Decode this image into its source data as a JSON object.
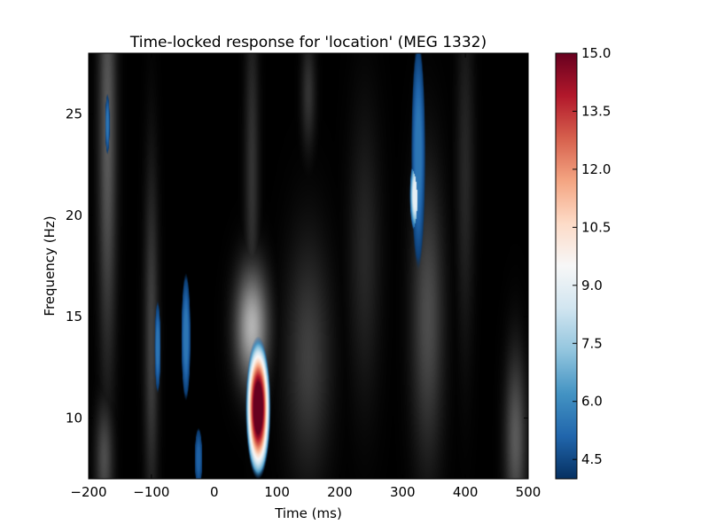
{
  "chart_data": {
    "type": "heatmap",
    "title": "Time-locked response for 'location' (MEG 1332)",
    "xlabel": "Time (ms)",
    "ylabel": "Frequency (Hz)",
    "xlim": [
      -200,
      500
    ],
    "ylim": [
      7,
      28
    ],
    "xticks": [
      -200,
      -100,
      0,
      100,
      200,
      300,
      400,
      500
    ],
    "xtick_labels": [
      "−200",
      "−100",
      "0",
      "100",
      "200",
      "300",
      "400",
      "500"
    ],
    "yticks": [
      10,
      15,
      20,
      25
    ],
    "ytick_labels": [
      "10",
      "15",
      "20",
      "25"
    ],
    "colorbar": {
      "range": [
        4,
        15
      ],
      "ticks": [
        4.5,
        6.0,
        7.5,
        9.0,
        10.5,
        12.0,
        13.5,
        15.0
      ],
      "tick_labels": [
        "4.5",
        "6.0",
        "7.5",
        "9.0",
        "10.5",
        "12.0",
        "13.5",
        "15.0"
      ],
      "colormap": "RdBu_r masked to gray"
    },
    "colormap_stops": [
      {
        "v": 0.0,
        "color": "#053061"
      },
      {
        "v": 0.1,
        "color": "#2166ac"
      },
      {
        "v": 0.2,
        "color": "#4393c3"
      },
      {
        "v": 0.3,
        "color": "#92c5de"
      },
      {
        "v": 0.4,
        "color": "#d1e5f0"
      },
      {
        "v": 0.5,
        "color": "#f7f7f7"
      },
      {
        "v": 0.6,
        "color": "#fddbc7"
      },
      {
        "v": 0.7,
        "color": "#f4a582"
      },
      {
        "v": 0.8,
        "color": "#d6604d"
      },
      {
        "v": 0.9,
        "color": "#b2182b"
      },
      {
        "v": 1.0,
        "color": "#67001f"
      }
    ],
    "background": "#000000",
    "significant_clusters": [
      {
        "t": 70,
        "f": 10.5,
        "st": 16,
        "sf": 2.8,
        "value": 15.0
      },
      {
        "t": 325,
        "f": 23,
        "st": 9,
        "sf": 4.5,
        "value": 5.5
      },
      {
        "t": 320,
        "f": 21,
        "st": 7,
        "sf": 1.5,
        "value": 9.0
      },
      {
        "t": -45,
        "f": 14.0,
        "st": 6,
        "sf": 2.5,
        "value": 5.5
      },
      {
        "t": -25,
        "f": 8.0,
        "st": 5,
        "sf": 1.2,
        "value": 5.0
      },
      {
        "t": -90,
        "f": 13.5,
        "st": 4,
        "sf": 1.8,
        "value": 5.5
      },
      {
        "t": -170,
        "f": 24.5,
        "st": 3,
        "sf": 1.2,
        "value": 5.5
      }
    ],
    "nonsignificant_bands": [
      {
        "t": -170,
        "f": 24,
        "st": 10,
        "sf": 8,
        "value": 0.35
      },
      {
        "t": -175,
        "f": 8,
        "st": 10,
        "sf": 2,
        "value": 0.3
      },
      {
        "t": -100,
        "f": 14,
        "st": 8,
        "sf": 6,
        "value": 0.25
      },
      {
        "t": 60,
        "f": 14.5,
        "st": 18,
        "sf": 2,
        "value": 0.7
      },
      {
        "t": 60,
        "f": 22,
        "st": 8,
        "sf": 6,
        "value": 0.2
      },
      {
        "t": 150,
        "f": 13,
        "st": 25,
        "sf": 4,
        "value": 0.25
      },
      {
        "t": 150,
        "f": 26,
        "st": 8,
        "sf": 2,
        "value": 0.2
      },
      {
        "t": 340,
        "f": 15,
        "st": 18,
        "sf": 5,
        "value": 0.3
      },
      {
        "t": 240,
        "f": 18,
        "st": 18,
        "sf": 5,
        "value": 0.15
      },
      {
        "t": 480,
        "f": 9,
        "st": 12,
        "sf": 3,
        "value": 0.35
      },
      {
        "t": 400,
        "f": 22,
        "st": 10,
        "sf": 6,
        "value": 0.15
      }
    ]
  }
}
